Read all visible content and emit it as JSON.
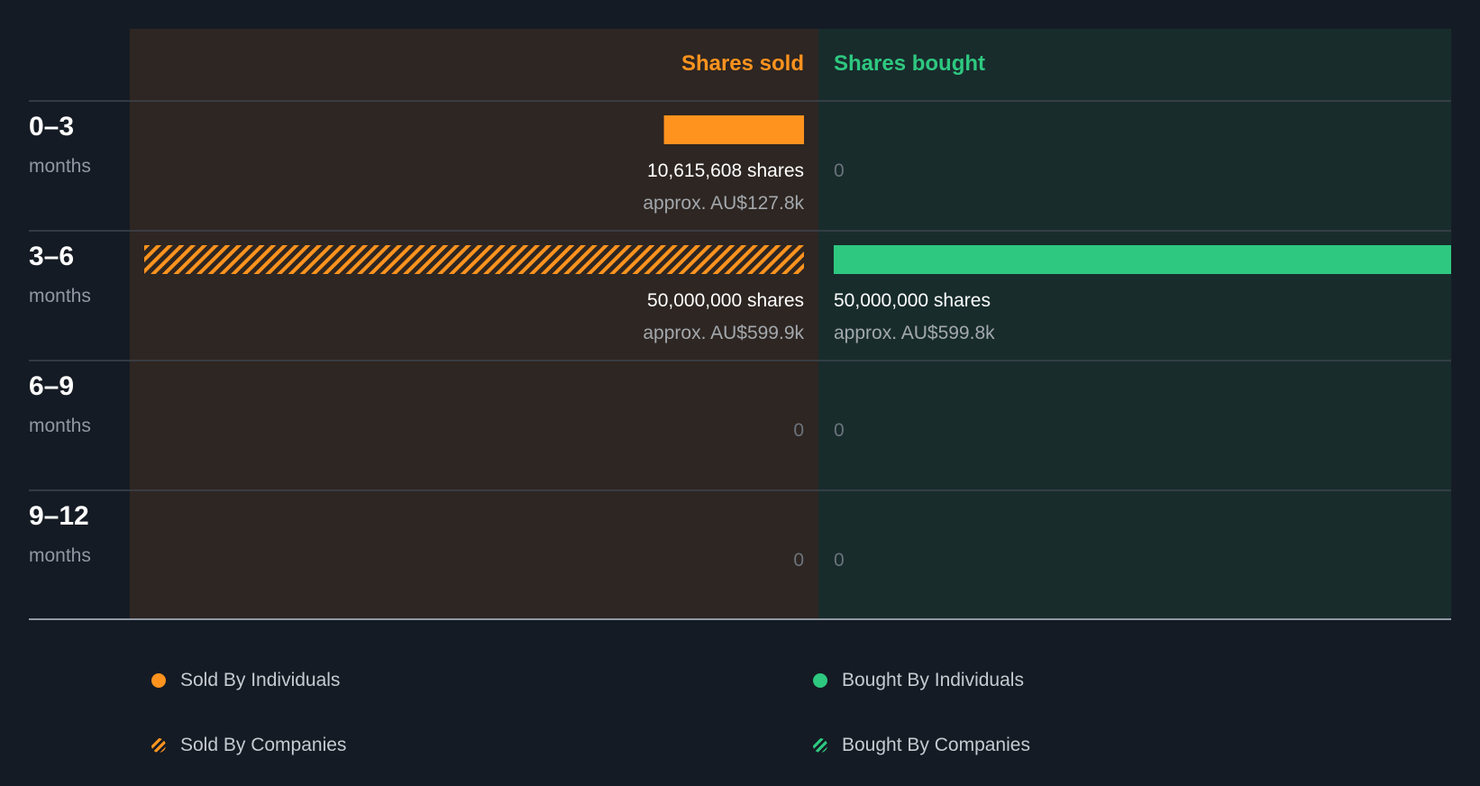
{
  "chart_data": {
    "type": "bar",
    "orientation": "horizontal-diverging",
    "column_headers": {
      "sold": "Shares sold",
      "bought": "Shares bought"
    },
    "row_unit": "months",
    "rows": [
      {
        "period": "0–3",
        "sold": {
          "shares": 10615608,
          "shares_label": "10,615,608 shares",
          "value_label": "approx. AU$127.8k",
          "by": "individuals"
        },
        "bought": {
          "shares": 0,
          "shares_label": "0",
          "value_label": ""
        }
      },
      {
        "period": "3–6",
        "sold": {
          "shares": 50000000,
          "shares_label": "50,000,000 shares",
          "value_label": "approx. AU$599.9k",
          "by": "companies"
        },
        "bought": {
          "shares": 50000000,
          "shares_label": "50,000,000 shares",
          "value_label": "approx. AU$599.8k",
          "by": "individuals"
        }
      },
      {
        "period": "6–9",
        "sold": {
          "shares": 0,
          "shares_label": "0",
          "value_label": ""
        },
        "bought": {
          "shares": 0,
          "shares_label": "0",
          "value_label": ""
        }
      },
      {
        "period": "9–12",
        "sold": {
          "shares": 0,
          "shares_label": "0",
          "value_label": ""
        },
        "bought": {
          "shares": 0,
          "shares_label": "0",
          "value_label": ""
        }
      }
    ],
    "legend": [
      "Sold By Individuals",
      "Bought By Individuals",
      "Sold By Companies",
      "Bought By Companies"
    ],
    "colors": {
      "sold": "#ff931e",
      "bought": "#2ec880",
      "sold_panel": "#2e2622",
      "bought_panel": "#182c2c",
      "background": "#151b24"
    }
  }
}
